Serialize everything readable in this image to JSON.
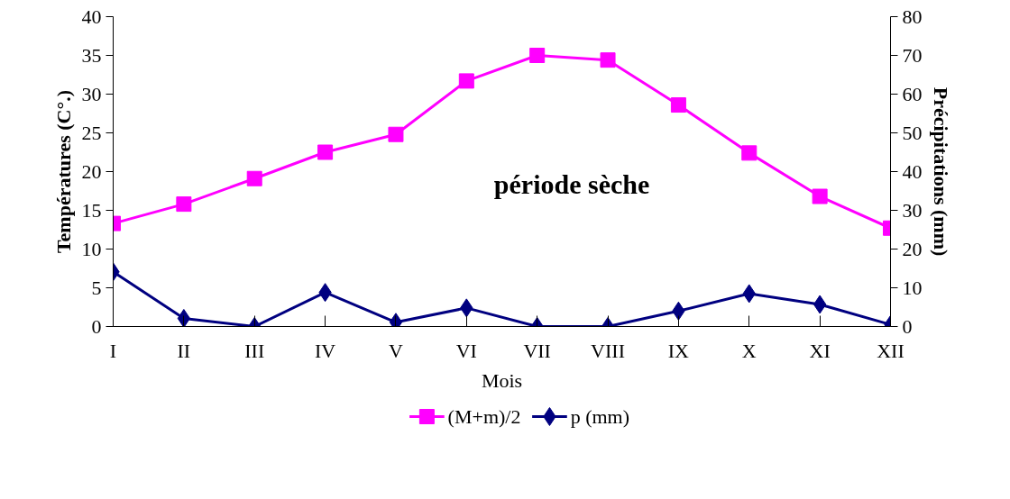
{
  "chart_data": {
    "type": "line",
    "xlabel": "Mois",
    "ylabel": "Températures (C°.)",
    "y2label": "Précipitations (mm)",
    "categories": [
      "I",
      "II",
      "III",
      "IV",
      "V",
      "VI",
      "VII",
      "VIII",
      "IX",
      "X",
      "XI",
      "XII"
    ],
    "series": [
      {
        "name": "(M+m)/2",
        "color": "#ff00ff",
        "marker": "square",
        "values": [
          13.3,
          15.8,
          19.1,
          22.5,
          24.8,
          31.7,
          35.0,
          34.4,
          28.6,
          22.4,
          16.8,
          12.7
        ]
      },
      {
        "name": "p (mm)",
        "color": "#000080",
        "marker": "diamond",
        "axis": "y2",
        "values": [
          14.1,
          2.1,
          0,
          8.8,
          1.1,
          4.8,
          0,
          0,
          4.0,
          8.5,
          5.7,
          0.5
        ]
      }
    ],
    "ylim": [
      0,
      40
    ],
    "yticks": [
      0,
      5,
      10,
      15,
      20,
      25,
      30,
      35,
      40
    ],
    "y2lim": [
      0,
      80
    ],
    "y2ticks": [
      0,
      10,
      20,
      30,
      40,
      50,
      60,
      70,
      80
    ],
    "annotations": [
      "période sèche"
    ],
    "grid": false,
    "legend": "bottom",
    "line_style": "solid"
  }
}
